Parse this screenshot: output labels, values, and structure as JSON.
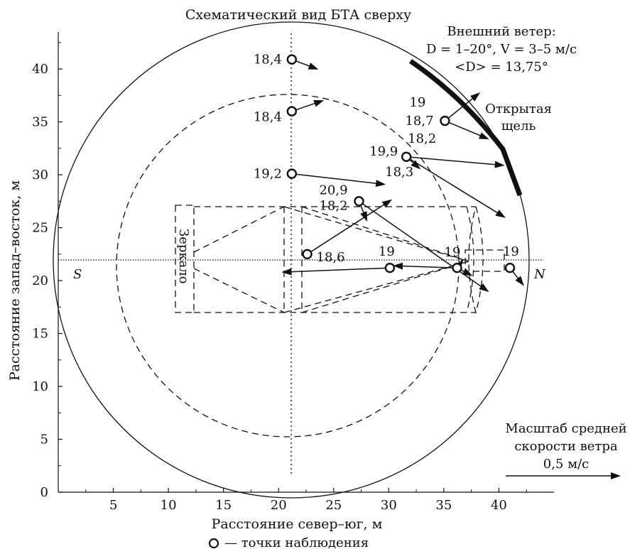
{
  "chart_data": {
    "type": "scatter",
    "title": "Схематический вид БТА сверху",
    "xlabel": "Расстояние север–юг, м",
    "ylabel": "Расстояние запад–восток, м",
    "xlim": [
      0,
      45
    ],
    "ylim": [
      0,
      43.5
    ],
    "xticks": [
      5,
      10,
      15,
      20,
      25,
      30,
      35,
      40
    ],
    "yticks": [
      0,
      5,
      10,
      15,
      20,
      25,
      30,
      35,
      40
    ],
    "wind_text": {
      "line1": "Внешний ветер:",
      "line2": "D = 1–20°, V = 3–5 м/с",
      "line3": "<D> = 13,75°"
    },
    "slit_label": {
      "line1": "Открытая",
      "line2": "щель"
    },
    "mirror_label": "Зеркало",
    "south_label": "S",
    "north_label": "N",
    "scale_text": {
      "line1": "Масштаб средней",
      "line2": "скорости ветра",
      "line3": "0,5 м/с"
    },
    "legend": "— точки наблюдения",
    "points": [
      {
        "x": 21.2,
        "y": 40.9,
        "labels": [
          "18,4"
        ]
      },
      {
        "x": 21.2,
        "y": 36.0,
        "labels": [
          "18,4"
        ]
      },
      {
        "x": 21.2,
        "y": 30.1,
        "labels": [
          "19,2"
        ]
      },
      {
        "x": 35.1,
        "y": 35.1,
        "labels": [
          "19",
          "18,7"
        ]
      },
      {
        "x": 31.6,
        "y": 31.7,
        "labels": [
          "19,9",
          "18,2",
          "18,3"
        ]
      },
      {
        "x": 27.3,
        "y": 27.5,
        "labels": [
          "20,9",
          "18,2"
        ]
      },
      {
        "x": 22.6,
        "y": 22.5,
        "labels": [
          "18,6"
        ]
      },
      {
        "x": 30.1,
        "y": 21.2,
        "labels": [
          "19"
        ]
      },
      {
        "x": 36.2,
        "y": 21.2,
        "labels": [
          "19"
        ]
      },
      {
        "x": 41.0,
        "y": 21.2,
        "labels": [
          "19"
        ]
      }
    ],
    "wind_vectors": [
      {
        "x0": 21.2,
        "y0": 40.9,
        "x1": 23.5,
        "y1": 40.0
      },
      {
        "x0": 21.2,
        "y0": 36.0,
        "x1": 24.0,
        "y1": 37.0
      },
      {
        "x0": 21.2,
        "y0": 30.1,
        "x1": 29.6,
        "y1": 29.1
      },
      {
        "x0": 35.1,
        "y0": 35.1,
        "x1": 38.2,
        "y1": 37.7
      },
      {
        "x0": 35.1,
        "y0": 35.1,
        "x1": 39.0,
        "y1": 33.4
      },
      {
        "x0": 31.6,
        "y0": 31.7,
        "x1": 32.8,
        "y1": 30.6
      },
      {
        "x0": 31.6,
        "y0": 31.7,
        "x1": 40.4,
        "y1": 30.9
      },
      {
        "x0": 31.6,
        "y0": 31.7,
        "x1": 40.5,
        "y1": 26.0
      },
      {
        "x0": 27.3,
        "y0": 27.5,
        "x1": 28.0,
        "y1": 25.7
      },
      {
        "x0": 27.3,
        "y0": 27.5,
        "x1": 39.0,
        "y1": 19.0
      },
      {
        "x0": 22.6,
        "y0": 22.5,
        "x1": 30.2,
        "y1": 27.6
      },
      {
        "x0": 36.2,
        "y0": 21.2,
        "x1": 30.5,
        "y1": 21.4
      },
      {
        "x0": 30.1,
        "y0": 21.2,
        "x1": 20.4,
        "y1": 20.8
      },
      {
        "x0": 36.2,
        "y0": 21.2,
        "x1": 36.7,
        "y1": 21.9
      },
      {
        "x0": 36.2,
        "y0": 21.2,
        "x1": 37.5,
        "y1": 20.5
      },
      {
        "x0": 41.0,
        "y0": 21.2,
        "x1": 42.2,
        "y1": 19.6
      }
    ]
  }
}
